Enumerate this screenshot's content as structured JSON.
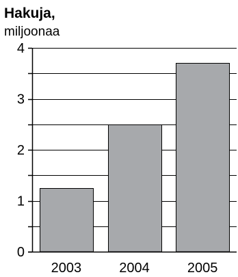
{
  "chart_data": {
    "type": "bar",
    "title": "Hakuja,",
    "ylabel": "miljoonaa",
    "xlabel": "",
    "categories": [
      "2003",
      "2004",
      "2005"
    ],
    "values": [
      1.25,
      2.5,
      3.7
    ],
    "ylim": [
      0,
      4
    ],
    "yticks": [
      "0",
      "1",
      "2",
      "3",
      "4"
    ],
    "grid": true,
    "colors": {
      "bar_fill": "#a7a9ac",
      "bar_stroke": "#000000",
      "grid": "#000000",
      "axis": "#000000"
    }
  }
}
